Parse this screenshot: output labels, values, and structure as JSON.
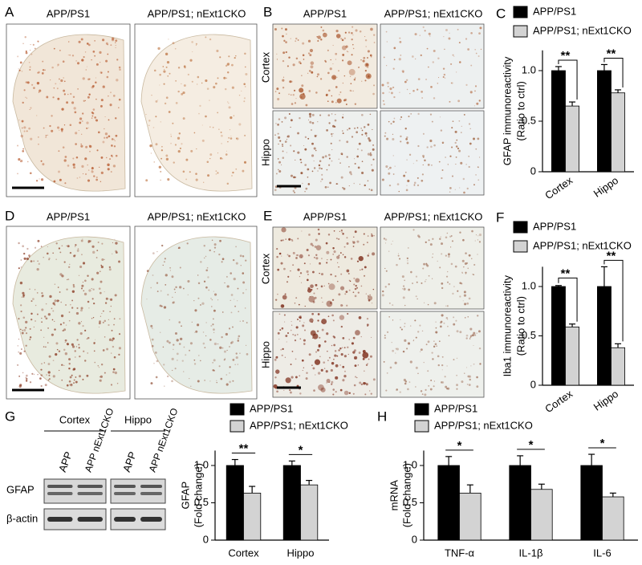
{
  "panels": {
    "A": {
      "label": "A",
      "columns": [
        "APP/PS1",
        "APP/PS1; nExt1CKO"
      ]
    },
    "B": {
      "label": "B",
      "columns": [
        "APP/PS1",
        "APP/PS1; nExt1CKO"
      ],
      "rows": [
        "Cortex",
        "Hippo"
      ]
    },
    "D": {
      "label": "D",
      "columns": [
        "APP/PS1",
        "APP/PS1; nExt1CKO"
      ]
    },
    "E": {
      "label": "E",
      "columns": [
        "APP/PS1",
        "APP/PS1; nExt1CKO"
      ],
      "rows": [
        "Cortex",
        "Hippo"
      ]
    },
    "G": {
      "label": "G",
      "regions": [
        "Cortex",
        "Hippo"
      ],
      "lanes": [
        "APP",
        "APP nExt1CKO"
      ],
      "rows": [
        "GFAP",
        "β-actin"
      ]
    }
  },
  "chart_data": [
    {
      "type": "bar",
      "panel": "C",
      "ylabel": [
        "GFAP immunoreactivity",
        "(Ratio to ctrl)"
      ],
      "categories": [
        "Cortex",
        "Hippo"
      ],
      "series": [
        {
          "name": "APP/PS1",
          "color": "#000000",
          "values": [
            1.0,
            1.0
          ],
          "errors": [
            0.04,
            0.06
          ]
        },
        {
          "name": "APP/PS1; nExt1CKO",
          "color": "#d3d3d3",
          "values": [
            0.65,
            0.78
          ],
          "errors": [
            0.04,
            0.03
          ]
        }
      ],
      "significance": [
        "**",
        "**"
      ],
      "ylim": [
        0,
        1.2
      ],
      "yticks": [
        0,
        0.5,
        {
          "value": 1,
          "label": "1.0"
        }
      ]
    },
    {
      "type": "bar",
      "panel": "F",
      "ylabel": [
        "Iba1 immunoreactivity",
        "(Ratio to ctrl)"
      ],
      "categories": [
        "Cortex",
        "Hippo"
      ],
      "series": [
        {
          "name": "APP/PS1",
          "color": "#000000",
          "values": [
            1.0,
            1.0
          ],
          "errors": [
            0.01,
            0.2
          ]
        },
        {
          "name": "APP/PS1; nExt1CKO",
          "color": "#d3d3d3",
          "values": [
            0.59,
            0.38
          ],
          "errors": [
            0.03,
            0.04
          ]
        }
      ],
      "significance": [
        "**",
        "**"
      ],
      "ylim": [
        0,
        1.2
      ],
      "yticks": [
        0,
        0.5,
        {
          "value": 1,
          "label": "1.0"
        }
      ]
    },
    {
      "type": "bar",
      "ylabel": [
        "GFAP",
        "(Fold change)"
      ],
      "categories": [
        "Cortex",
        "Hippo"
      ],
      "series": [
        {
          "name": "APP/PS1",
          "color": "#000000",
          "values": [
            1.0,
            1.0
          ],
          "errors": [
            0.08,
            0.06
          ]
        },
        {
          "name": "APP/PS1; nExt1CKO",
          "color": "#d3d3d3",
          "values": [
            0.63,
            0.74
          ],
          "errors": [
            0.09,
            0.06
          ]
        }
      ],
      "significance": [
        "**",
        "*"
      ],
      "ylim": [
        0,
        1.2
      ],
      "yticks": [
        0,
        0.5,
        {
          "value": 1,
          "label": "1.0"
        }
      ]
    },
    {
      "type": "bar",
      "panel": "H",
      "ylabel": [
        "mRNA",
        "(Fold change)"
      ],
      "categories": [
        "TNF-α",
        "IL-1β",
        "IL-6"
      ],
      "series": [
        {
          "name": "APP/PS1",
          "color": "#000000",
          "values": [
            1.0,
            1.0,
            1.0
          ],
          "errors": [
            0.12,
            0.13,
            0.15
          ]
        },
        {
          "name": "APP/PS1; nExt1CKO",
          "color": "#d3d3d3",
          "values": [
            0.63,
            0.68,
            0.58
          ],
          "errors": [
            0.11,
            0.07,
            0.05
          ]
        }
      ],
      "significance": [
        "*",
        "*",
        "*"
      ],
      "ylim": [
        0,
        1.2
      ],
      "yticks": [
        0,
        0.5,
        {
          "value": 1,
          "label": "1.0"
        }
      ]
    }
  ]
}
